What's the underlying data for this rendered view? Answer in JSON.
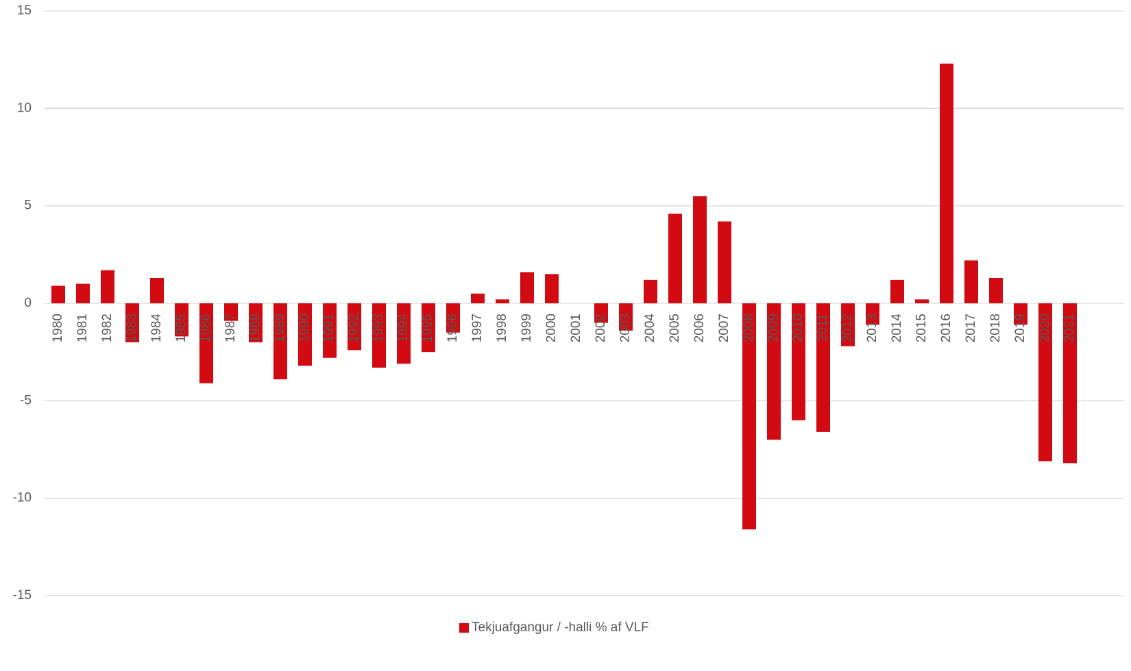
{
  "chart_data": {
    "type": "bar",
    "categories": [
      "1980",
      "1981",
      "1982",
      "1983",
      "1984",
      "1985",
      "1986",
      "1987",
      "1988",
      "1989",
      "1990",
      "1991",
      "1992",
      "1993",
      "1994",
      "1995",
      "1996",
      "1997",
      "1998",
      "1999",
      "2000",
      "2001",
      "2002",
      "2003",
      "2004",
      "2005",
      "2006",
      "2007",
      "2008",
      "2009",
      "2010",
      "2011",
      "2012",
      "2013",
      "2014",
      "2015",
      "2016",
      "2017",
      "2018",
      "2019",
      "2020",
      "2021"
    ],
    "series": [
      {
        "name": "Tekjuafgangur / -halli % af VLF",
        "color": "#d20a11",
        "values": [
          0.9,
          1.0,
          1.7,
          -2.0,
          1.3,
          -1.7,
          -4.1,
          -0.9,
          -2.0,
          -3.9,
          -3.2,
          -2.8,
          -2.4,
          -3.3,
          -3.1,
          -2.5,
          -1.5,
          0.5,
          0.2,
          1.6,
          1.5,
          0,
          -1.0,
          -1.4,
          1.2,
          4.6,
          5.5,
          4.2,
          -11.6,
          -7.0,
          -6.0,
          -6.6,
          -2.2,
          -1.1,
          1.2,
          0.2,
          12.3,
          2.2,
          1.3,
          -1.1,
          -8.1,
          -8.2
        ]
      }
    ],
    "ylim": [
      -15,
      15
    ],
    "yticks": [
      -15,
      -10,
      -5,
      0,
      5,
      10,
      15
    ],
    "grid": true,
    "legend": "bottom"
  }
}
